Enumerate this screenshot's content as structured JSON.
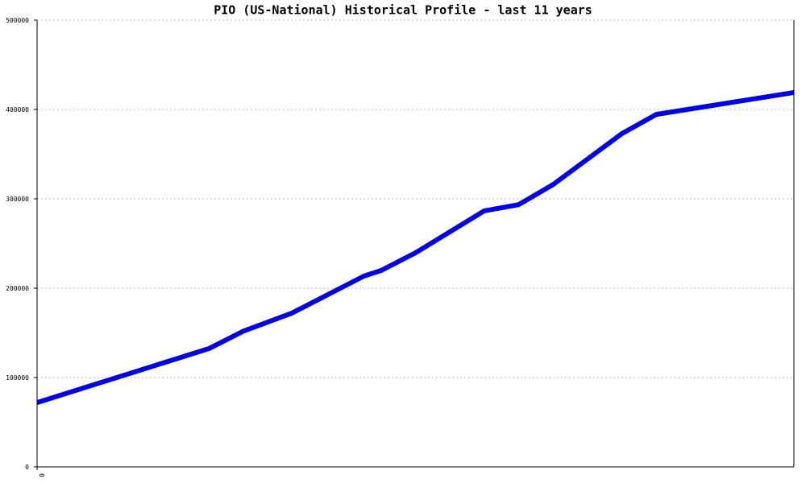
{
  "chart_data": {
    "type": "line",
    "title": "PIO (US-National) Historical Profile - last 11 years",
    "x": [
      0,
      2.5,
      3,
      3.7,
      4.75,
      5,
      5.5,
      6.5,
      7,
      7.5,
      8.5,
      9,
      11
    ],
    "series": [
      {
        "color": "#0000e8",
        "values": [
          72000,
          132500,
          152000,
          172000,
          213500,
          219800,
          239600,
          286500,
          293500,
          316000,
          373000,
          394500,
          419000
        ]
      }
    ],
    "xlim": [
      0,
      11
    ],
    "xticks": [
      0
    ],
    "ylim": [
      0,
      500000
    ],
    "yticks": [
      0,
      100000,
      200000,
      300000,
      400000,
      500000
    ],
    "grid": true
  }
}
